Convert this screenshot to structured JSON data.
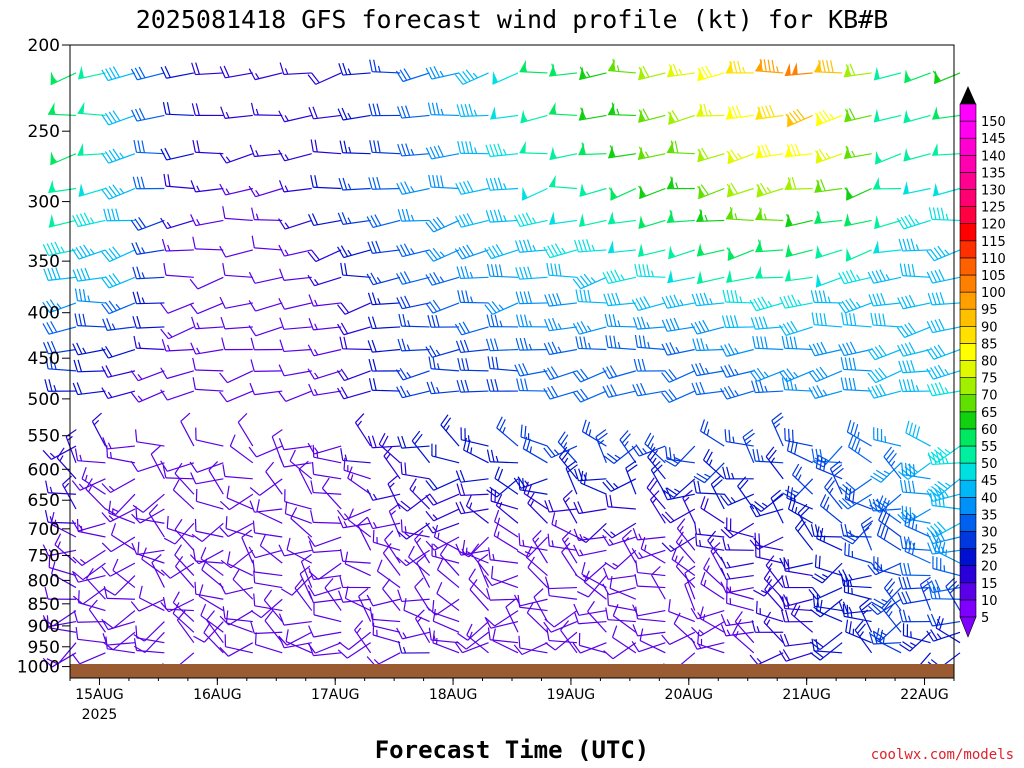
{
  "chart_data": {
    "type": "wind_barb_time_height",
    "title": "2025081418 GFS forecast wind profile (kt) for KB#B",
    "xlabel": "Forecast Time (UTC)",
    "ylabel": "",
    "y_ticks": [
      200,
      250,
      300,
      350,
      400,
      450,
      500,
      550,
      600,
      650,
      700,
      750,
      800,
      850,
      900,
      950,
      1000
    ],
    "y_range_hPa": [
      1030,
      200
    ],
    "x_ticks": [
      {
        "label": "15AUG",
        "sublabel": "2025",
        "hour": 6
      },
      {
        "label": "16AUG",
        "hour": 30
      },
      {
        "label": "17AUG",
        "hour": 54
      },
      {
        "label": "18AUG",
        "hour": 78
      },
      {
        "label": "19AUG",
        "hour": 102
      },
      {
        "label": "20AUG",
        "hour": 126
      },
      {
        "label": "21AUG",
        "hour": 150
      },
      {
        "label": "22AUG",
        "hour": 174
      }
    ],
    "x_range_hours": [
      0,
      180
    ],
    "time_step_hours": 6,
    "colorbar": {
      "unit": "kt",
      "ticks": [
        5,
        10,
        15,
        20,
        25,
        30,
        35,
        40,
        45,
        50,
        55,
        60,
        65,
        70,
        75,
        80,
        85,
        90,
        95,
        100,
        105,
        110,
        115,
        120,
        125,
        130,
        135,
        140,
        145,
        150
      ],
      "colors": [
        "#7f00ff",
        "#5a00e8",
        "#2a00d8",
        "#0010d0",
        "#0038e0",
        "#0060f0",
        "#0090f8",
        "#00b8f8",
        "#00e0e0",
        "#00f0a0",
        "#00e860",
        "#10d010",
        "#60e000",
        "#a0f000",
        "#e0f800",
        "#ffff00",
        "#ffe000",
        "#ffc000",
        "#ffa000",
        "#ff8000",
        "#ff6000",
        "#ff3000",
        "#ff0000",
        "#ff0040",
        "#ff0070",
        "#ff0090",
        "#ff00b0",
        "#ff00d0",
        "#ff00f0",
        "#ff00ff"
      ]
    },
    "wind_speed_kt": [
      {
        "hPa": 215,
        "hours": [
          0,
          6,
          12,
          24,
          48,
          72,
          96,
          120,
          138,
          144,
          150,
          156,
          168,
          180
        ],
        "speed": [
          55,
          50,
          40,
          20,
          15,
          30,
          55,
          70,
          85,
          95,
          100,
          90,
          50,
          60
        ]
      },
      {
        "hPa": 270,
        "hours": [
          0,
          12,
          24,
          36,
          48,
          72,
          96,
          120,
          138,
          144,
          150,
          156,
          168,
          180
        ],
        "speed": [
          55,
          45,
          20,
          15,
          15,
          35,
          50,
          65,
          75,
          80,
          80,
          75,
          55,
          50
        ]
      },
      {
        "hPa": 320,
        "hours": [
          0,
          12,
          24,
          36,
          48,
          72,
          96,
          120,
          138,
          144,
          150,
          162,
          174,
          180
        ],
        "speed": [
          50,
          40,
          15,
          10,
          15,
          35,
          45,
          55,
          65,
          65,
          60,
          55,
          45,
          45
        ]
      },
      {
        "hPa": 375,
        "hours": [
          0,
          12,
          24,
          48,
          72,
          96,
          120,
          144,
          162,
          180
        ],
        "speed": [
          40,
          40,
          10,
          10,
          30,
          40,
          45,
          50,
          45,
          40
        ]
      },
      {
        "hPa": 425,
        "hours": [
          0,
          24,
          48,
          72,
          96,
          120,
          144,
          168,
          180
        ],
        "speed": [
          30,
          15,
          10,
          25,
          35,
          35,
          40,
          40,
          40
        ]
      },
      {
        "hPa": 475,
        "hours": [
          0,
          24,
          48,
          72,
          96,
          120,
          144,
          168,
          180
        ],
        "speed": [
          25,
          10,
          10,
          25,
          30,
          30,
          35,
          40,
          45
        ]
      },
      {
        "hPa": 525,
        "hours": [
          0,
          24,
          48,
          72,
          96,
          120,
          144,
          168,
          180
        ],
        "speed": [
          20,
          10,
          10,
          25,
          30,
          30,
          30,
          40,
          45
        ]
      },
      {
        "hPa": 600,
        "hours": [
          0,
          24,
          48,
          72,
          96,
          120,
          144,
          168,
          180
        ],
        "speed": [
          15,
          10,
          10,
          20,
          25,
          25,
          25,
          35,
          45
        ]
      },
      {
        "hPa": 700,
        "hours": [
          0,
          24,
          48,
          72,
          96,
          120,
          144,
          168,
          180
        ],
        "speed": [
          15,
          10,
          10,
          15,
          15,
          15,
          20,
          30,
          40
        ]
      },
      {
        "hPa": 850,
        "hours": [
          0,
          24,
          48,
          72,
          96,
          120,
          144,
          168,
          180
        ],
        "speed": [
          10,
          10,
          10,
          10,
          10,
          10,
          15,
          25,
          30
        ]
      },
      {
        "hPa": 950,
        "hours": [
          0,
          24,
          48,
          72,
          96,
          120,
          144,
          168,
          180
        ],
        "speed": [
          10,
          10,
          10,
          15,
          10,
          10,
          15,
          25,
          20
        ]
      }
    ],
    "grid": false,
    "legend": "colorbar right",
    "ground_color": "#9a5a32"
  },
  "credit": "coolwx.com/models"
}
